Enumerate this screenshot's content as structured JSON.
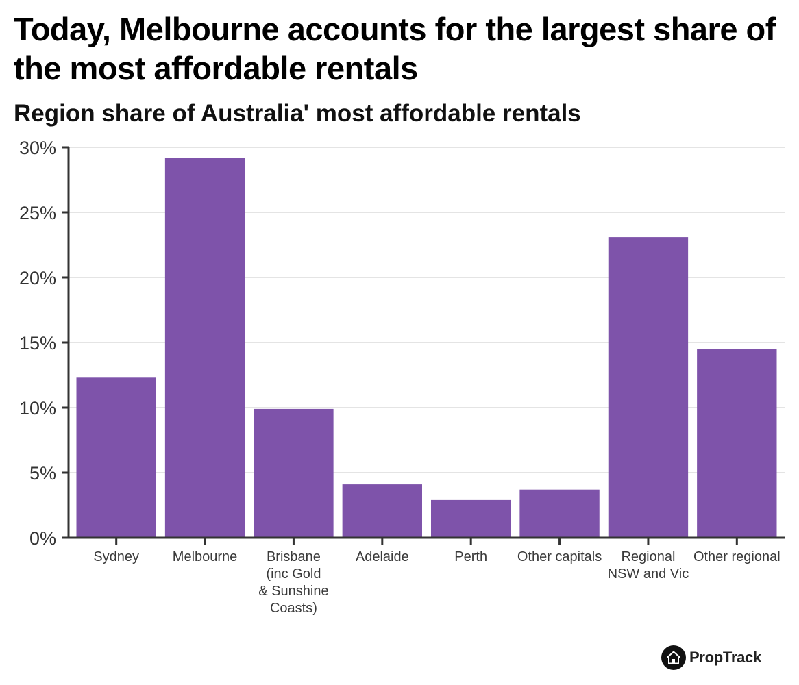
{
  "chart_data": {
    "type": "bar",
    "title": "Today, Melbourne accounts for the largest share of the most affordable rentals",
    "subtitle": "Region share of Australia' most affordable rentals",
    "xlabel": "",
    "ylabel": "",
    "categories": [
      "Sydney",
      "Melbourne",
      "Brisbane (inc Gold & Sunshine Coasts)",
      "Adelaide",
      "Perth",
      "Other capitals",
      "Regional NSW and Vic",
      "Other regional"
    ],
    "category_lines": [
      [
        "Sydney"
      ],
      [
        "Melbourne"
      ],
      [
        "Brisbane",
        "(inc Gold",
        "& Sunshine",
        "Coasts)"
      ],
      [
        "Adelaide"
      ],
      [
        "Perth"
      ],
      [
        "Other capitals"
      ],
      [
        "Regional",
        "NSW and Vic"
      ],
      [
        "Other regional"
      ]
    ],
    "values": [
      12.3,
      29.2,
      9.9,
      4.1,
      2.9,
      3.7,
      23.1,
      14.5
    ],
    "ylim": [
      0,
      30
    ],
    "yticks": [
      0,
      5,
      10,
      15,
      20,
      25,
      30
    ],
    "ytick_labels": [
      "0%",
      "5%",
      "10%",
      "15%",
      "20%",
      "25%",
      "30%"
    ],
    "grid": true,
    "bar_color": "#7e53aa"
  },
  "brand": {
    "logo_text": "PropTrack",
    "logo_icon": "house-icon"
  }
}
